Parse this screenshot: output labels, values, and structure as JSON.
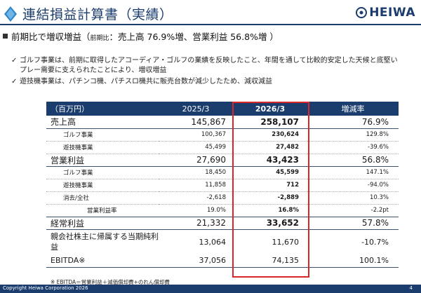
{
  "header": {
    "title": "連結損益計算書（実績）",
    "brand": "HEIWA",
    "logo_icon": "blue-diamond-logo-icon",
    "brand_icon": "heiwa-circle-mark-icon",
    "color_primary": "#1b3d6e",
    "color_accent": "#d9262a"
  },
  "summary": {
    "prefix": "前期比で増収増益（",
    "small": "前期比",
    "rest": "：売上高 76.9%増、営業利益 56.8%増 ）"
  },
  "bullets": [
    "ゴルフ事業は、前期に取得したアコーディア・ゴルフの業績を反映したこと、年間を通して比較的安定した天候と底堅いプレー需要に支えられたことにより、増収増益",
    "遊技機事業は、パチンコ機、パチスロ機共に販売台数が減少したため、減収減益"
  ],
  "table": {
    "headers": [
      "（百万円）",
      "2025/3",
      "2026/3",
      "増減率"
    ],
    "rows": [
      {
        "type": "main",
        "label": "売上高",
        "prev": "145,867",
        "curr": "258,107",
        "change": "76.9%"
      },
      {
        "type": "sub",
        "label": "ゴルフ事業",
        "prev": "100,367",
        "curr": "230,624",
        "change": "129.8%"
      },
      {
        "type": "sub",
        "label": "遊技機事業",
        "prev": "45,499",
        "curr": "27,482",
        "change": "-39.6%"
      },
      {
        "type": "main",
        "label": "営業利益",
        "prev": "27,690",
        "curr": "43,423",
        "change": "56.8%"
      },
      {
        "type": "sub",
        "label": "ゴルフ事業",
        "prev": "18,450",
        "curr": "45,599",
        "change": "147.1%"
      },
      {
        "type": "sub",
        "label": "遊技機事業",
        "prev": "11,858",
        "curr": "712",
        "change": "-94.0%"
      },
      {
        "type": "sub",
        "label": "消去/全社",
        "prev": "-2,618",
        "curr": "-2,889",
        "change": "10.3%"
      },
      {
        "type": "ratio",
        "label": "営業利益率",
        "prev": "19.0%",
        "curr": "16.8%",
        "change": "-2.2pt"
      },
      {
        "type": "main",
        "label": "経常利益",
        "prev": "21,332",
        "curr": "33,652",
        "change": "57.8%"
      },
      {
        "type": "tall",
        "label": "親会社株主に帰属する当期純利益",
        "prev": "13,064",
        "curr": "11,670",
        "change": "-10.7%"
      },
      {
        "type": "last",
        "label": "EBITDA※",
        "prev": "37,056",
        "curr": "74,135",
        "change": "100.1%"
      }
    ]
  },
  "note": "※ EBITDA＝営業利益＋減価償却費+のれん償却費",
  "footer": {
    "copyright": "Copyright  Heiwa Corporation  2026",
    "page": "4"
  }
}
